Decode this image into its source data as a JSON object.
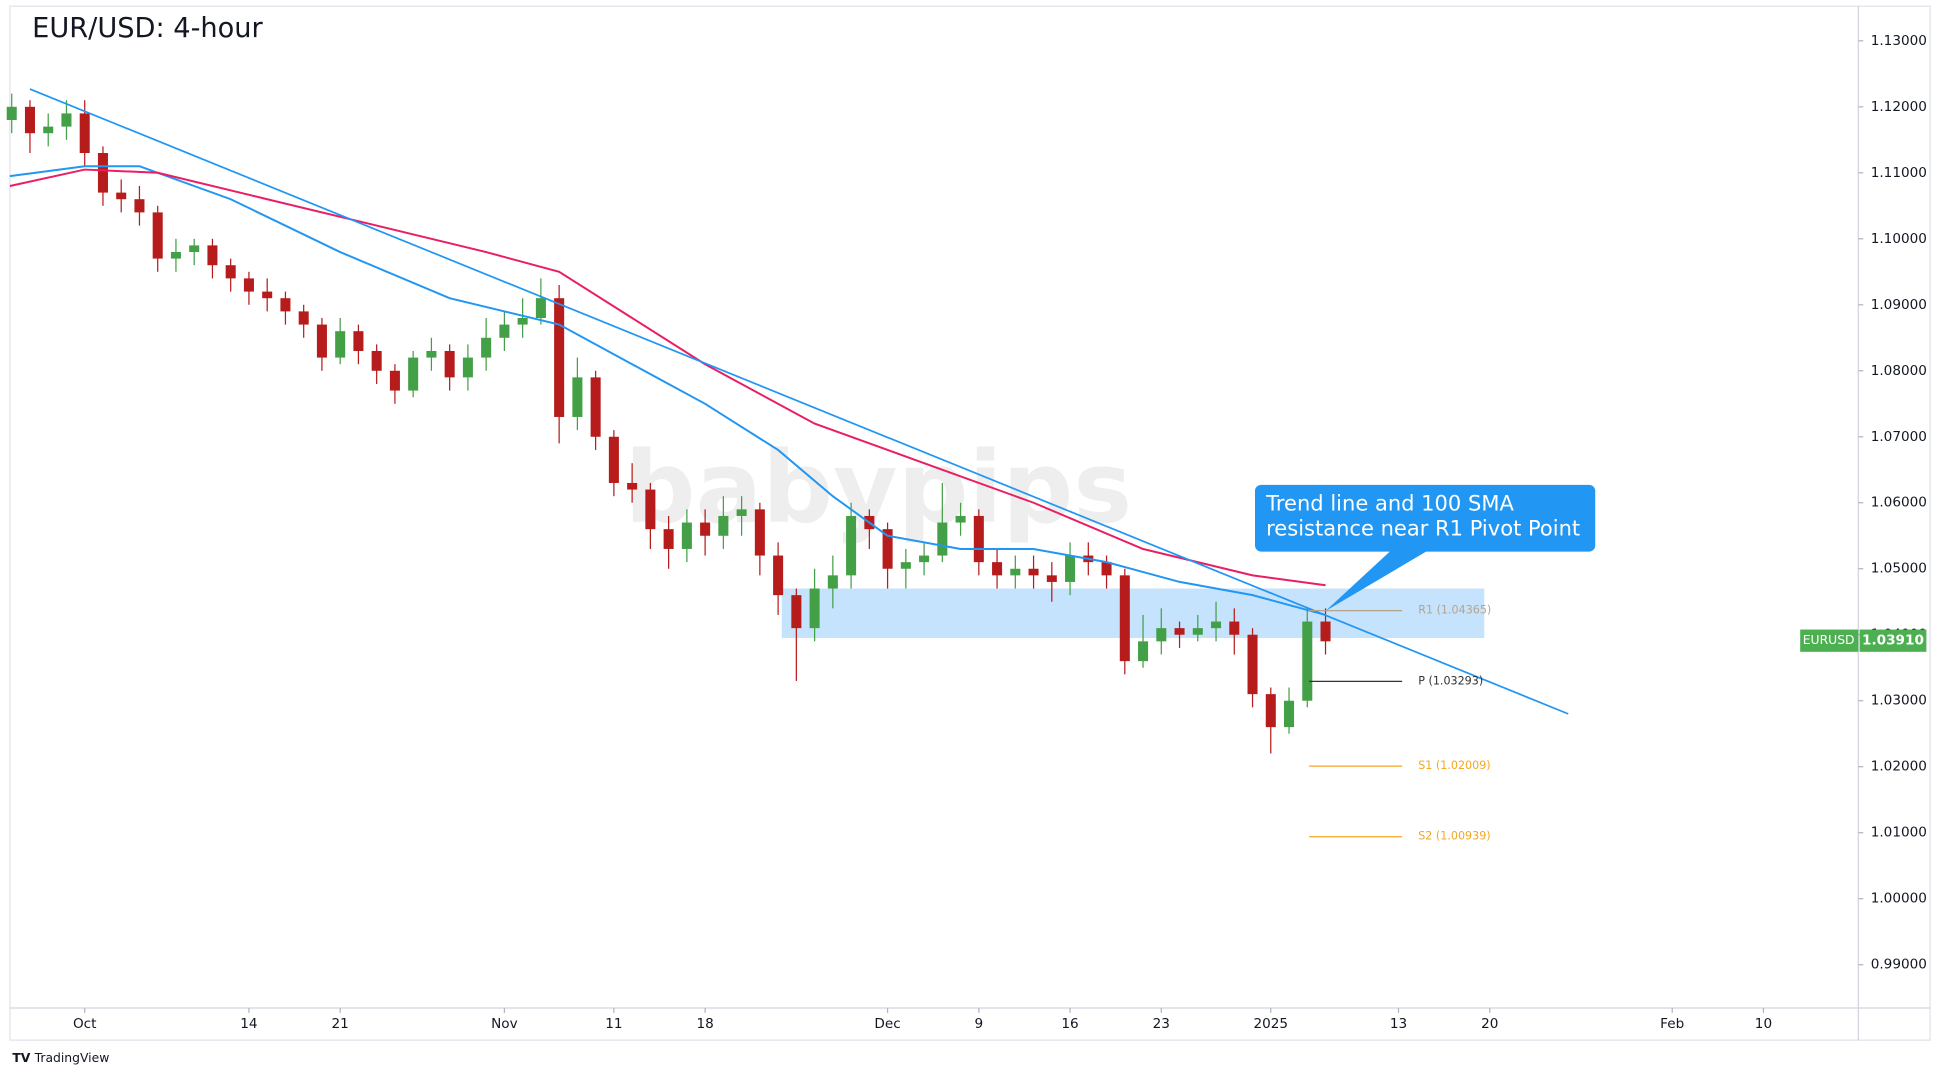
{
  "chart_data": {
    "type": "candlestick",
    "title": "EUR/USD: 4-hour",
    "watermark": "babypips",
    "footer": "TradingView",
    "symbol": "EURUSD",
    "last_price": {
      "value": 1.0391,
      "label": "1.03910"
    },
    "up_color": "#43a047",
    "down_color": "#b71c1c",
    "xlim": [
      -4.1,
      97.2
    ],
    "ylim": [
      0.98344,
      1.13525
    ],
    "grid": false,
    "xticks": [
      {
        "value": 0,
        "label": "Oct"
      },
      {
        "value": 9,
        "label": "14"
      },
      {
        "value": 14,
        "label": "21"
      },
      {
        "value": 23,
        "label": "Nov"
      },
      {
        "value": 29,
        "label": "11"
      },
      {
        "value": 34,
        "label": "18"
      },
      {
        "value": 44,
        "label": "Dec"
      },
      {
        "value": 49,
        "label": "9"
      },
      {
        "value": 54,
        "label": "16"
      },
      {
        "value": 59,
        "label": "23"
      },
      {
        "value": 65,
        "label": "2025"
      },
      {
        "value": 72,
        "label": "13"
      },
      {
        "value": 77,
        "label": "20"
      },
      {
        "value": 87,
        "label": "Feb"
      },
      {
        "value": 92,
        "label": "10"
      }
    ],
    "yticks": [
      {
        "value": 0.99,
        "label": "0.99000"
      },
      {
        "value": 1.0,
        "label": "1.00000"
      },
      {
        "value": 1.01,
        "label": "1.01000"
      },
      {
        "value": 1.02,
        "label": "1.02000"
      },
      {
        "value": 1.03,
        "label": "1.03000"
      },
      {
        "value": 1.04,
        "label": "1.04000"
      },
      {
        "value": 1.05,
        "label": "1.05000"
      },
      {
        "value": 1.06,
        "label": "1.06000"
      },
      {
        "value": 1.07,
        "label": "1.07000"
      },
      {
        "value": 1.08,
        "label": "1.08000"
      },
      {
        "value": 1.09,
        "label": "1.09000"
      },
      {
        "value": 1.1,
        "label": "1.10000"
      },
      {
        "value": 1.11,
        "label": "1.11000"
      },
      {
        "value": 1.12,
        "label": "1.12000"
      },
      {
        "value": 1.13,
        "label": "1.13000"
      }
    ],
    "x": [
      -4,
      -3,
      -2,
      -1,
      0,
      1,
      2,
      3,
      4,
      5,
      6,
      7,
      8,
      9,
      10,
      11,
      12,
      13,
      14,
      15,
      16,
      17,
      18,
      19,
      20,
      21,
      22,
      23,
      24,
      25,
      26,
      27,
      28,
      29,
      30,
      31,
      32,
      33,
      34,
      35,
      36,
      37,
      38,
      39,
      40,
      41,
      42,
      43,
      44,
      45,
      46,
      47,
      48,
      49,
      50,
      51,
      52,
      53,
      54,
      55,
      56,
      57,
      58,
      59,
      60,
      61,
      62,
      63,
      64,
      65,
      66,
      67,
      68
    ],
    "open": [
      1.118,
      1.12,
      1.116,
      1.117,
      1.119,
      1.113,
      1.107,
      1.106,
      1.104,
      1.097,
      1.098,
      1.099,
      1.096,
      1.094,
      1.092,
      1.091,
      1.089,
      1.087,
      1.082,
      1.086,
      1.083,
      1.08,
      1.077,
      1.082,
      1.083,
      1.079,
      1.082,
      1.085,
      1.087,
      1.088,
      1.091,
      1.073,
      1.079,
      1.07,
      1.063,
      1.062,
      1.056,
      1.053,
      1.057,
      1.055,
      1.058,
      1.059,
      1.052,
      1.046,
      1.041,
      1.047,
      1.049,
      1.058,
      1.056,
      1.05,
      1.051,
      1.052,
      1.057,
      1.058,
      1.051,
      1.049,
      1.05,
      1.049,
      1.048,
      1.052,
      1.051,
      1.049,
      1.036,
      1.039,
      1.041,
      1.04,
      1.041,
      1.042,
      1.04,
      1.031,
      1.026,
      1.03,
      1.042
    ],
    "high": [
      1.122,
      1.121,
      1.119,
      1.121,
      1.121,
      1.114,
      1.109,
      1.108,
      1.105,
      1.1,
      1.1,
      1.1,
      1.097,
      1.095,
      1.094,
      1.092,
      1.09,
      1.088,
      1.088,
      1.087,
      1.084,
      1.081,
      1.083,
      1.085,
      1.084,
      1.084,
      1.088,
      1.089,
      1.091,
      1.094,
      1.093,
      1.082,
      1.08,
      1.071,
      1.066,
      1.063,
      1.058,
      1.059,
      1.059,
      1.061,
      1.061,
      1.06,
      1.054,
      1.047,
      1.05,
      1.052,
      1.06,
      1.059,
      1.057,
      1.053,
      1.054,
      1.063,
      1.06,
      1.059,
      1.053,
      1.052,
      1.052,
      1.051,
      1.054,
      1.054,
      1.052,
      1.05,
      1.043,
      1.044,
      1.042,
      1.043,
      1.045,
      1.044,
      1.041,
      1.032,
      1.032,
      1.044,
      1.044
    ],
    "low": [
      1.116,
      1.113,
      1.114,
      1.115,
      1.111,
      1.105,
      1.104,
      1.102,
      1.095,
      1.095,
      1.096,
      1.094,
      1.092,
      1.09,
      1.089,
      1.087,
      1.085,
      1.08,
      1.081,
      1.081,
      1.078,
      1.075,
      1.076,
      1.08,
      1.077,
      1.077,
      1.08,
      1.083,
      1.085,
      1.087,
      1.069,
      1.071,
      1.068,
      1.061,
      1.06,
      1.053,
      1.05,
      1.051,
      1.052,
      1.053,
      1.055,
      1.049,
      1.043,
      1.033,
      1.039,
      1.044,
      1.047,
      1.053,
      1.047,
      1.047,
      1.049,
      1.051,
      1.055,
      1.049,
      1.047,
      1.047,
      1.047,
      1.045,
      1.046,
      1.049,
      1.047,
      1.034,
      1.035,
      1.037,
      1.038,
      1.039,
      1.039,
      1.037,
      1.029,
      1.022,
      1.025,
      1.029,
      1.037
    ],
    "close": [
      1.12,
      1.116,
      1.117,
      1.119,
      1.113,
      1.107,
      1.106,
      1.104,
      1.097,
      1.098,
      1.099,
      1.096,
      1.094,
      1.092,
      1.091,
      1.089,
      1.087,
      1.082,
      1.086,
      1.083,
      1.08,
      1.077,
      1.082,
      1.083,
      1.079,
      1.082,
      1.085,
      1.087,
      1.088,
      1.091,
      1.073,
      1.079,
      1.07,
      1.063,
      1.062,
      1.056,
      1.053,
      1.057,
      1.055,
      1.058,
      1.059,
      1.052,
      1.046,
      1.041,
      1.047,
      1.049,
      1.058,
      1.056,
      1.05,
      1.051,
      1.052,
      1.057,
      1.058,
      1.051,
      1.049,
      1.05,
      1.049,
      1.048,
      1.052,
      1.051,
      1.049,
      1.036,
      1.039,
      1.041,
      1.04,
      1.041,
      1.042,
      1.04,
      1.031,
      1.026,
      1.03,
      1.042,
      1.039
    ],
    "series": [
      {
        "color": "#2196f3",
        "x": [
          -4.1,
          0,
          3,
          8,
          14,
          20,
          26,
          30,
          34,
          38,
          41,
          44,
          48,
          52,
          56,
          60,
          64,
          68
        ],
        "values": [
          1.1095,
          1.111,
          1.111,
          1.106,
          1.098,
          1.091,
          1.087,
          1.081,
          1.075,
          1.068,
          1.061,
          1.055,
          1.053,
          1.053,
          1.051,
          1.048,
          1.046,
          1.043
        ]
      },
      {
        "color": "#e91e63",
        "x": [
          -4.1,
          0,
          4,
          10,
          16,
          22,
          26,
          30,
          34,
          40,
          46,
          52,
          58,
          64,
          68
        ],
        "values": [
          1.108,
          1.1105,
          1.11,
          1.106,
          1.102,
          1.098,
          1.095,
          1.088,
          1.081,
          1.072,
          1.066,
          1.06,
          1.053,
          1.049,
          1.0475
        ]
      }
    ],
    "trendline": {
      "color": "#2196f3",
      "x": [
        -3,
        81.3
      ],
      "values": [
        1.1227,
        1.028
      ]
    },
    "zone": {
      "color": "#bbdefb",
      "x": [
        38.2,
        76.7
      ],
      "values": [
        1.0395,
        1.047
      ]
    },
    "pivots": {
      "x": [
        67.1,
        72.2
      ],
      "levels": [
        {
          "label": "R1 (1.04365)",
          "value": 1.04365,
          "color": "#b5a48c"
        },
        {
          "label": "P (1.03293)",
          "value": 1.03293,
          "color": "#333333"
        },
        {
          "label": "S1 (1.02009)",
          "value": 1.02009,
          "color": "#f5a623"
        },
        {
          "label": "S2 (1.00939)",
          "value": 1.00939,
          "color": "#f5a623"
        }
      ]
    },
    "annotation": {
      "lines": [
        "Trend line and 100 SMA",
        "resistance near R1 Pivot Point"
      ],
      "color": "#2196f3",
      "x": 68,
      "value": 1.0436
    }
  }
}
